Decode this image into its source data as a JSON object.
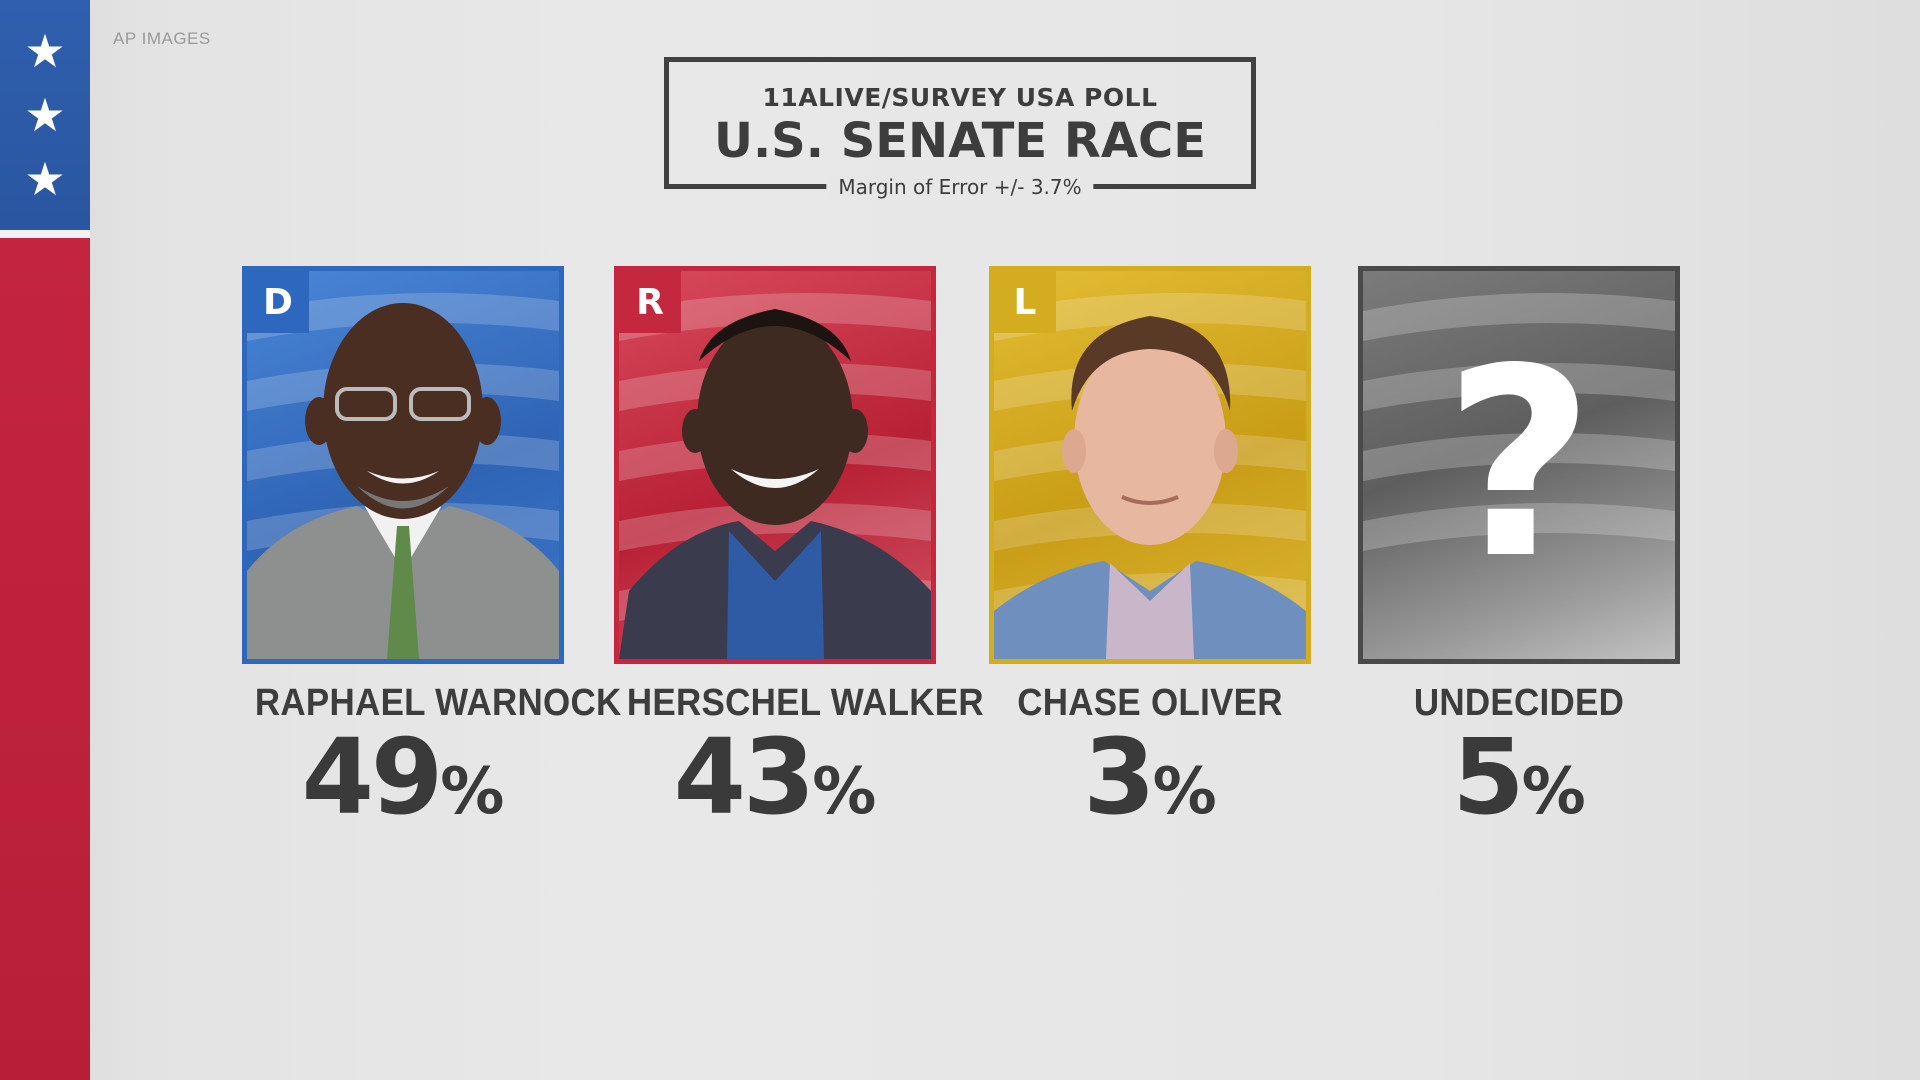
{
  "credit": "AP IMAGES",
  "flag": {
    "stars": [
      "★",
      "★",
      "★"
    ]
  },
  "header": {
    "poll": "11ALIVE/SURVEY USA POLL",
    "race": "U.S. SENATE RACE",
    "margin": "Margin of Error +/- 3.7%"
  },
  "candidates": [
    {
      "party": "D",
      "name": "RAPHAEL WARNOCK",
      "percent": "49",
      "percent_sign": "%",
      "color": "#2e67be"
    },
    {
      "party": "R",
      "name": "HERSCHEL WALKER",
      "percent": "43",
      "percent_sign": "%",
      "color": "#c4283f"
    },
    {
      "party": "L",
      "name": "CHASE OLIVER",
      "percent": "3",
      "percent_sign": "%",
      "color": "#d3ac1f"
    },
    {
      "party": "",
      "name": "UNDECIDED",
      "percent": "5",
      "percent_sign": "%",
      "color": "#4a4a4a",
      "symbol": "?"
    }
  ]
}
